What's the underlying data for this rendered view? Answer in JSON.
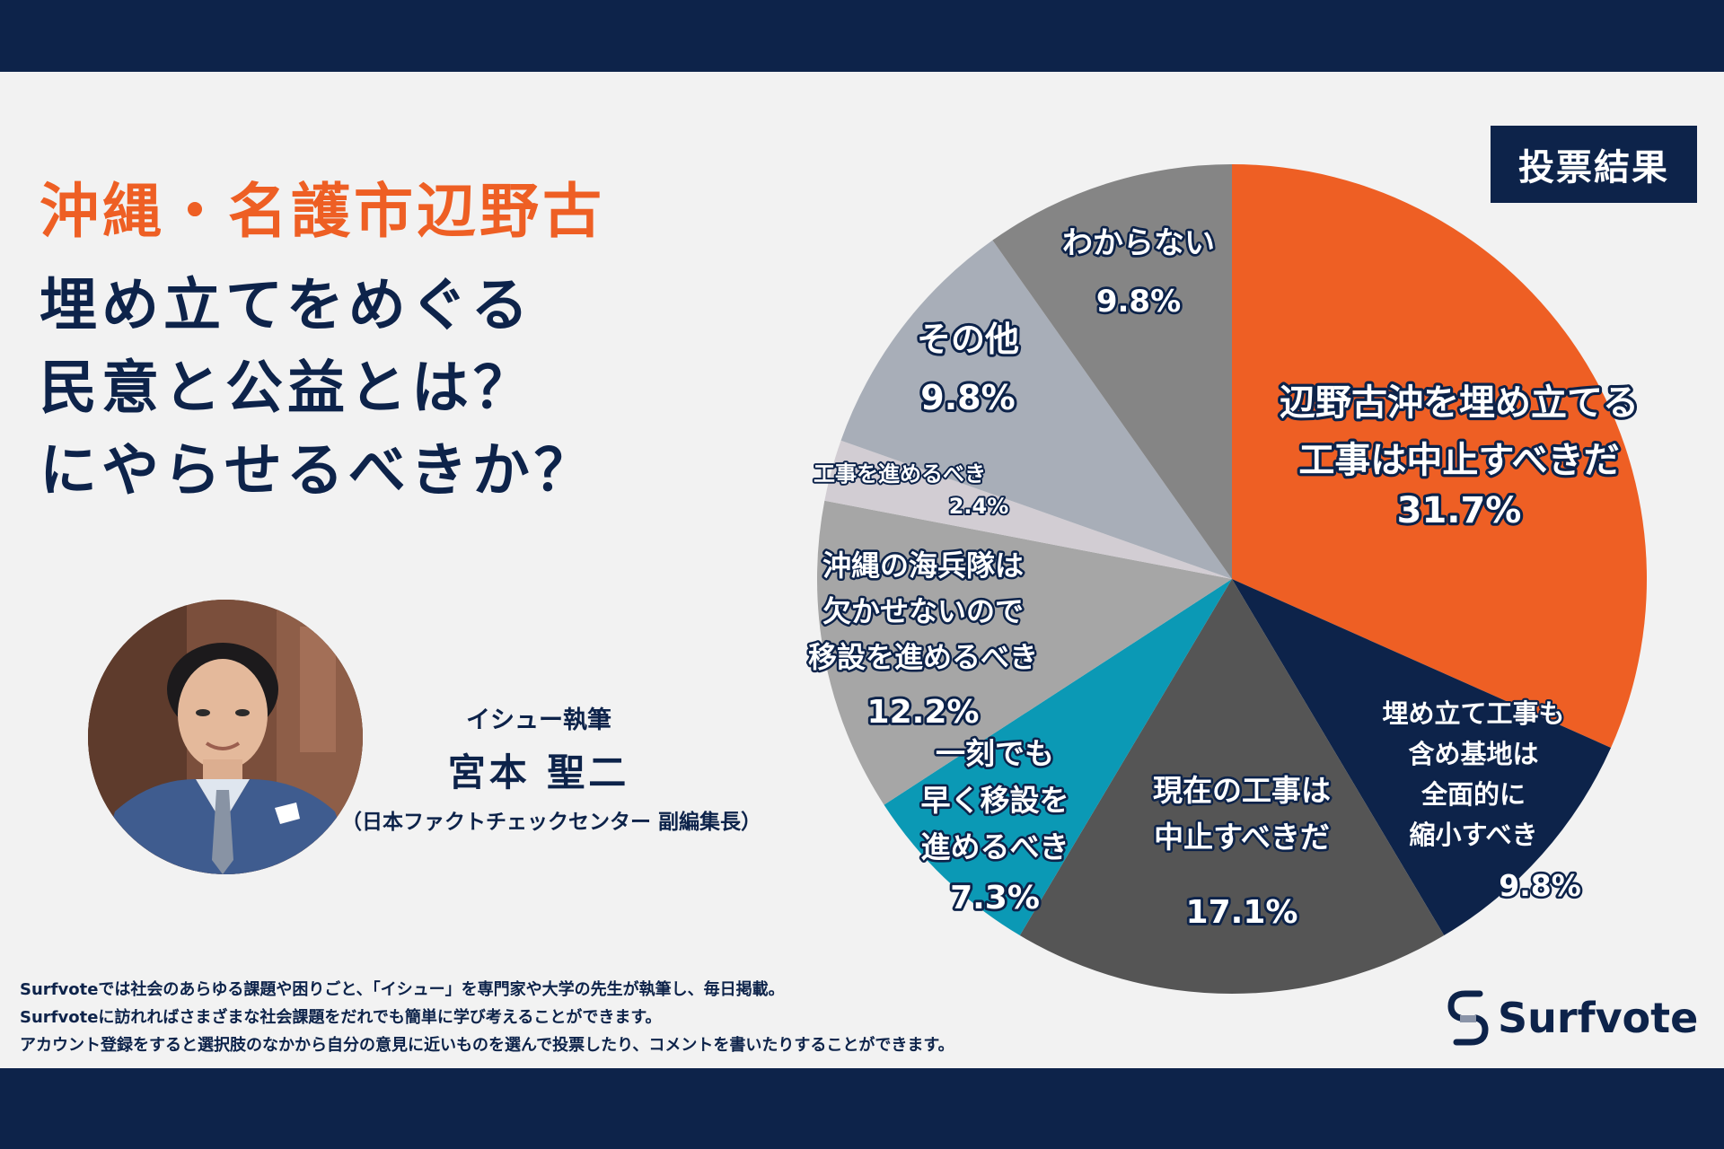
{
  "title": {
    "accent": "沖縄・名護市辺野古",
    "lines": [
      "埋め立てをめぐる",
      "民意と公益とは？",
      "にやらせるべきか？"
    ]
  },
  "badge": "投票結果",
  "author": {
    "role": "イシュー執筆",
    "name": "宮本 聖二",
    "affiliation": "（日本ファクトチェックセンター 副編集長）"
  },
  "footer": {
    "lines": [
      "Surfvoteでは社会のあらゆる課題や困りごと、「イシュー」を専門家や大学の先生が執筆し、毎日掲載。",
      "Surfvoteに訪れればさまざまな社会課題をだれでも簡単に学び考えることができます。",
      "アカウント登録をすると選択肢のなかから自分の意見に近いものを選んで投票したり、コメントを書いたりすることができます。"
    ]
  },
  "brand": {
    "name": "Surfvote"
  },
  "colors": {
    "navy": "#0d234a",
    "orange": "#ee5f24",
    "background": "#f2f2f2"
  },
  "chart_data": {
    "type": "pie",
    "slices": [
      {
        "label_lines": [
          "辺野古沖を埋め立てる",
          "工事は中止すべきだ"
        ],
        "value": 31.7,
        "value_label": "31.7%",
        "color": "#ee5f24"
      },
      {
        "label_lines": [
          "埋め立て工事も",
          "含め基地は",
          "全面的に",
          "縮小すべき"
        ],
        "value": 9.8,
        "value_label": "9.8%",
        "color": "#0d234a"
      },
      {
        "label_lines": [
          "現在の工事は",
          "中止すべきだ"
        ],
        "value": 17.1,
        "value_label": "17.1%",
        "color": "#555555"
      },
      {
        "label_lines": [
          "一刻でも",
          "早く移設を",
          "進めるべき"
        ],
        "value": 7.3,
        "value_label": "7.3%",
        "color": "#0b99b5"
      },
      {
        "label_lines": [
          "沖縄の海兵隊は",
          "欠かせないので",
          "移設を進めるべき"
        ],
        "value": 12.2,
        "value_label": "12.2%",
        "color": "#a6a6a6"
      },
      {
        "label_lines": [
          "工事を進めるべき"
        ],
        "value": 2.4,
        "value_label": "2.4%",
        "color": "#d2cdd3"
      },
      {
        "label_lines": [
          "その他"
        ],
        "value": 9.8,
        "value_label": "9.8%",
        "color": "#a8aeb8"
      },
      {
        "label_lines": [
          "わからない"
        ],
        "value": 9.8,
        "value_label": "9.8%",
        "color": "#858585"
      }
    ]
  }
}
